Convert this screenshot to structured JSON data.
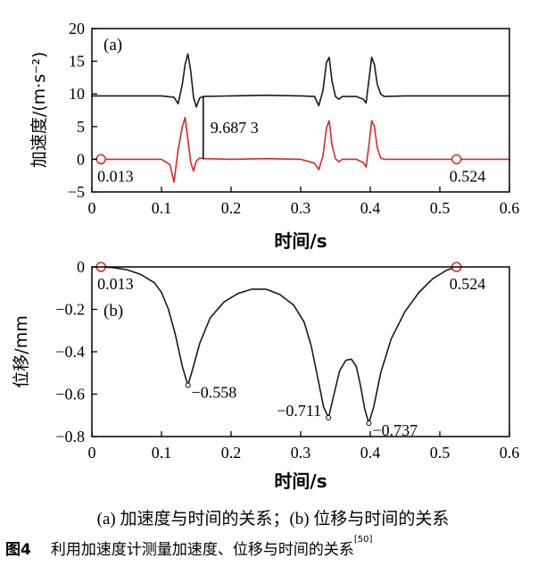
{
  "chart_data": [
    {
      "type": "line",
      "panel_label": "(a)",
      "xlabel": "时间/s",
      "ylabel": "加速度/(m·s⁻²)",
      "xlim": [
        0,
        0.6
      ],
      "ylim": [
        -5,
        20
      ],
      "xticks": [
        "0",
        "0.1",
        "0.2",
        "0.3",
        "0.4",
        "0.5",
        "0.6"
      ],
      "yticks": [
        "-5",
        "0",
        "5",
        "10",
        "15",
        "20"
      ],
      "series": [
        {
          "color": "#1a1a1a",
          "x": [
            0,
            0.05,
            0.1,
            0.118,
            0.124,
            0.13,
            0.134,
            0.138,
            0.142,
            0.146,
            0.15,
            0.155,
            0.16,
            0.2,
            0.25,
            0.3,
            0.32,
            0.326,
            0.332,
            0.337,
            0.341,
            0.345,
            0.35,
            0.355,
            0.36,
            0.38,
            0.39,
            0.394,
            0.398,
            0.402,
            0.406,
            0.41,
            0.415,
            0.42,
            0.45,
            0.5,
            0.55,
            0.6
          ],
          "y": [
            9.7,
            9.7,
            9.7,
            9.5,
            8.5,
            11.5,
            14.5,
            16.1,
            13.5,
            9.5,
            8.0,
            9.4,
            9.6,
            9.7,
            9.8,
            9.7,
            9.6,
            8.2,
            10.5,
            14.8,
            15.6,
            12.0,
            9.6,
            9.2,
            9.6,
            9.6,
            9.2,
            8.6,
            12.0,
            15.6,
            14.5,
            11.5,
            10.0,
            9.6,
            9.7,
            9.7,
            9.7,
            9.7
          ]
        },
        {
          "color": "#d42a2a",
          "x": [
            0,
            0.05,
            0.1,
            0.112,
            0.118,
            0.124,
            0.13,
            0.134,
            0.138,
            0.142,
            0.146,
            0.15,
            0.155,
            0.16,
            0.2,
            0.25,
            0.3,
            0.32,
            0.326,
            0.332,
            0.337,
            0.341,
            0.345,
            0.35,
            0.355,
            0.36,
            0.38,
            0.39,
            0.394,
            0.398,
            0.402,
            0.406,
            0.41,
            0.415,
            0.42,
            0.45,
            0.5,
            0.55,
            0.6
          ],
          "y": [
            0,
            0,
            0,
            -0.8,
            -3.5,
            1.5,
            5.0,
            6.4,
            3.0,
            -0.5,
            -1.8,
            -0.3,
            0.2,
            0.1,
            0.0,
            0.1,
            0.0,
            -0.6,
            -1.6,
            0.5,
            4.8,
            5.9,
            2.2,
            0.1,
            -0.4,
            0.0,
            0.0,
            -0.5,
            -1.2,
            2.0,
            5.9,
            5.0,
            1.8,
            0.2,
            0.0,
            0.0,
            0.0,
            0.0,
            0.0
          ]
        }
      ],
      "annotations": [
        {
          "text": "9.687 3",
          "x": 0.16,
          "y_from": 0.0,
          "y_to": 9.687
        },
        {
          "text": "0.013",
          "x": 0.013,
          "y": 0
        },
        {
          "text": "0.524",
          "x": 0.524,
          "y": 0
        }
      ]
    },
    {
      "type": "line",
      "panel_label": "(b)",
      "xlabel": "时间/s",
      "ylabel": "位移/mm",
      "xlim": [
        0,
        0.6
      ],
      "ylim": [
        -0.8,
        0
      ],
      "xticks": [
        "0",
        "0.1",
        "0.2",
        "0.3",
        "0.4",
        "0.5",
        "0.6"
      ],
      "yticks": [
        "0",
        "-0.2",
        "-0.4",
        "-0.6",
        "-0.8"
      ],
      "series": [
        {
          "color": "#1a1a1a",
          "x": [
            0.013,
            0.03,
            0.05,
            0.07,
            0.09,
            0.1,
            0.11,
            0.12,
            0.13,
            0.138,
            0.145,
            0.155,
            0.17,
            0.19,
            0.21,
            0.23,
            0.25,
            0.27,
            0.29,
            0.305,
            0.315,
            0.325,
            0.333,
            0.34,
            0.348,
            0.356,
            0.365,
            0.373,
            0.38,
            0.386,
            0.392,
            0.398,
            0.405,
            0.415,
            0.43,
            0.45,
            0.47,
            0.49,
            0.51,
            0.524
          ],
          "y": [
            0,
            -0.003,
            -0.013,
            -0.035,
            -0.075,
            -0.12,
            -0.2,
            -0.32,
            -0.47,
            -0.558,
            -0.48,
            -0.36,
            -0.24,
            -0.165,
            -0.125,
            -0.105,
            -0.105,
            -0.13,
            -0.18,
            -0.26,
            -0.37,
            -0.53,
            -0.66,
            -0.711,
            -0.6,
            -0.49,
            -0.44,
            -0.435,
            -0.47,
            -0.56,
            -0.67,
            -0.737,
            -0.66,
            -0.5,
            -0.34,
            -0.21,
            -0.12,
            -0.055,
            -0.015,
            0
          ]
        }
      ],
      "annotations": [
        {
          "text": "0.013",
          "x": 0.013,
          "y": 0
        },
        {
          "text": "0.524",
          "x": 0.524,
          "y": 0
        },
        {
          "text": "-0.558",
          "x": 0.138,
          "y": -0.558
        },
        {
          "text": "-0.711",
          "x": 0.34,
          "y": -0.711
        },
        {
          "text": "-0.737",
          "x": 0.398,
          "y": -0.737
        }
      ]
    }
  ],
  "caption_sub": "(a) 加速度与时间的关系；(b) 位移与时间的关系",
  "caption_num": "图4",
  "caption_main": "利用加速度计测量加速度、位移与时间的关系",
  "caption_ref": "[50]"
}
